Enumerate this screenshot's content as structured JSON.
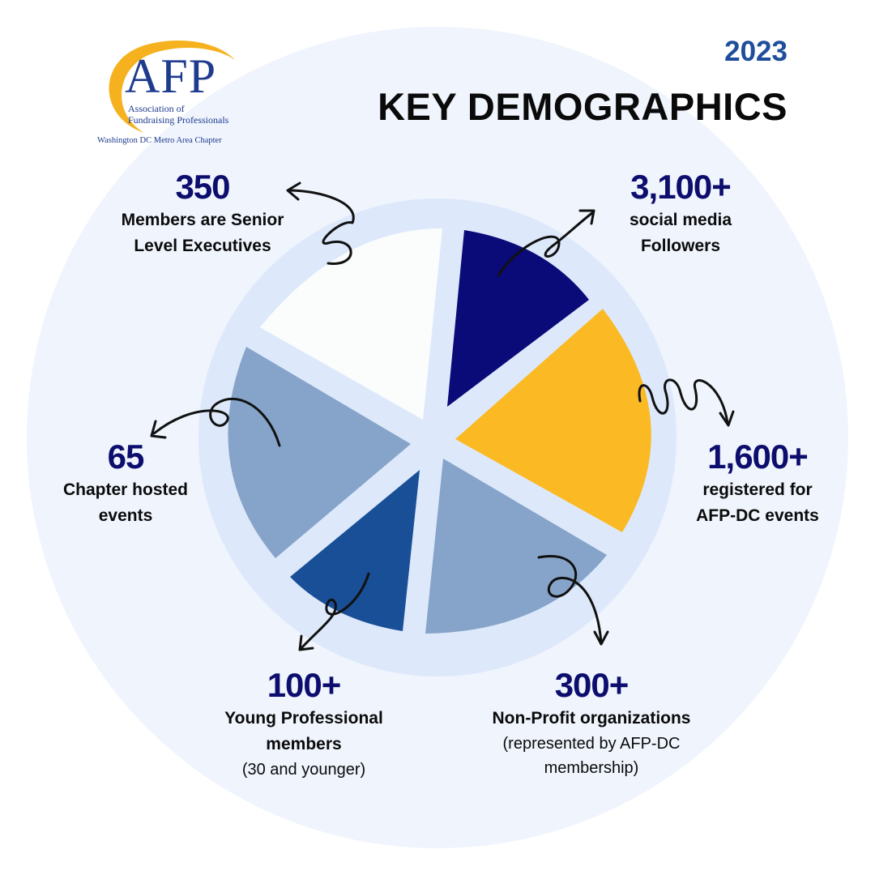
{
  "logo": {
    "mark": "AFP",
    "line1": "Association of",
    "line2": "Fundraising Professionals",
    "chapter": "Washington DC Metro Area Chapter"
  },
  "header": {
    "year": "2023",
    "title": "KEY DEMOGRAPHICS"
  },
  "colors": {
    "navy": "#0a0a78",
    "royal_blue": "#184f97",
    "slate_blue": "#86a4c9",
    "gold": "#fbb924",
    "white_slice": "#fbfdfd",
    "ring": "#dde9fb",
    "background": "#eff4fd"
  },
  "stats": {
    "senior_execs": {
      "number": "350",
      "label1": "Members are Senior",
      "label2": "Level Executives"
    },
    "social": {
      "number": "3,100+",
      "label1": "social media",
      "label2": "Followers"
    },
    "events_registered": {
      "number": "1,600+",
      "label1": "registered for",
      "label2": "AFP-DC events"
    },
    "chapter_events": {
      "number": "65",
      "label1": "Chapter hosted",
      "label2": "events"
    },
    "young_pros": {
      "number": "100+",
      "label1": "Young Professional",
      "label2": "members",
      "note": "(30 and younger)"
    },
    "nonprofits": {
      "number": "300+",
      "label1": "Non-Profit organizations",
      "note1": "(represented by AFP-DC",
      "note2": "membership)"
    }
  }
}
